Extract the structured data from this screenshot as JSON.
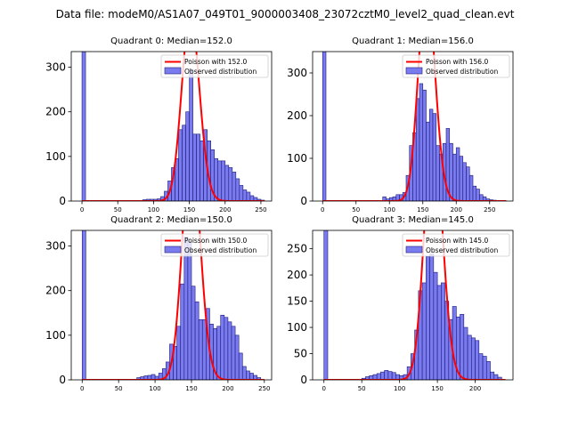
{
  "figure": {
    "suptitle": "Data file: modeM0/AS1A07_049T01_9000003408_23072cztM0_level2_quad_clean.evt"
  },
  "colors": {
    "hist_fill": "#7b7bf0",
    "hist_edge": "#1a1a7a",
    "poisson": "#ff0000"
  },
  "chart_data": [
    {
      "type": "bar",
      "title": "Quadrant 0: Median=152.0",
      "median": 152.0,
      "legend": {
        "poisson": "Poisson with 152.0",
        "observed": "Observed distribution"
      },
      "xlim": [
        -15,
        265
      ],
      "ylim": [
        0,
        335
      ],
      "xticks": [
        0,
        50,
        100,
        150,
        200,
        250
      ],
      "yticks": [
        0,
        100,
        200,
        300
      ],
      "bin_width": 5,
      "bins": [
        [
          0,
          335
        ],
        [
          85,
          3
        ],
        [
          90,
          4
        ],
        [
          95,
          4
        ],
        [
          100,
          4
        ],
        [
          105,
          5
        ],
        [
          110,
          10
        ],
        [
          115,
          22
        ],
        [
          120,
          45
        ],
        [
          125,
          75
        ],
        [
          130,
          95
        ],
        [
          135,
          160
        ],
        [
          140,
          170
        ],
        [
          145,
          200
        ],
        [
          150,
          295
        ],
        [
          155,
          150
        ],
        [
          160,
          150
        ],
        [
          165,
          135
        ],
        [
          170,
          160
        ],
        [
          175,
          135
        ],
        [
          180,
          115
        ],
        [
          185,
          95
        ],
        [
          190,
          90
        ],
        [
          195,
          90
        ],
        [
          200,
          80
        ],
        [
          205,
          75
        ],
        [
          210,
          65
        ],
        [
          215,
          50
        ],
        [
          220,
          35
        ],
        [
          225,
          25
        ],
        [
          230,
          20
        ],
        [
          235,
          12
        ],
        [
          240,
          8
        ],
        [
          245,
          4
        ],
        [
          250,
          2
        ]
      ]
    },
    {
      "type": "bar",
      "title": "Quadrant 1: Median=156.0",
      "median": 156.0,
      "legend": {
        "poisson": "Poisson with 156.0",
        "observed": "Observed distribution"
      },
      "xlim": [
        -15,
        285
      ],
      "ylim": [
        0,
        350
      ],
      "xticks": [
        0,
        50,
        100,
        150,
        200,
        250
      ],
      "yticks": [
        0,
        100,
        200,
        300
      ],
      "bin_width": 5,
      "bins": [
        [
          0,
          350
        ],
        [
          90,
          10
        ],
        [
          95,
          5
        ],
        [
          100,
          8
        ],
        [
          105,
          10
        ],
        [
          110,
          15
        ],
        [
          115,
          15
        ],
        [
          120,
          20
        ],
        [
          125,
          60
        ],
        [
          130,
          130
        ],
        [
          135,
          160
        ],
        [
          140,
          240
        ],
        [
          145,
          275
        ],
        [
          150,
          260
        ],
        [
          155,
          185
        ],
        [
          160,
          215
        ],
        [
          165,
          205
        ],
        [
          170,
          130
        ],
        [
          175,
          110
        ],
        [
          180,
          135
        ],
        [
          185,
          170
        ],
        [
          190,
          135
        ],
        [
          195,
          110
        ],
        [
          200,
          125
        ],
        [
          205,
          105
        ],
        [
          210,
          90
        ],
        [
          215,
          80
        ],
        [
          220,
          60
        ],
        [
          225,
          35
        ],
        [
          230,
          28
        ],
        [
          235,
          15
        ],
        [
          240,
          10
        ],
        [
          245,
          5
        ],
        [
          250,
          3
        ],
        [
          255,
          2
        ]
      ]
    },
    {
      "type": "bar",
      "title": "Quadrant 2: Median=150.0",
      "median": 150.0,
      "legend": {
        "poisson": "Poisson with 150.0",
        "observed": "Observed distribution"
      },
      "xlim": [
        -15,
        260
      ],
      "ylim": [
        0,
        335
      ],
      "xticks": [
        0,
        50,
        100,
        150,
        200,
        250
      ],
      "yticks": [
        0,
        100,
        200,
        300
      ],
      "bin_width": 5,
      "bins": [
        [
          0,
          335
        ],
        [
          75,
          5
        ],
        [
          80,
          7
        ],
        [
          85,
          9
        ],
        [
          90,
          10
        ],
        [
          95,
          12
        ],
        [
          100,
          8
        ],
        [
          105,
          15
        ],
        [
          110,
          25
        ],
        [
          115,
          40
        ],
        [
          120,
          80
        ],
        [
          125,
          75
        ],
        [
          130,
          120
        ],
        [
          135,
          215
        ],
        [
          140,
          320
        ],
        [
          145,
          310
        ],
        [
          150,
          210
        ],
        [
          155,
          175
        ],
        [
          160,
          135
        ],
        [
          165,
          135
        ],
        [
          170,
          160
        ],
        [
          175,
          125
        ],
        [
          180,
          115
        ],
        [
          185,
          120
        ],
        [
          190,
          145
        ],
        [
          195,
          140
        ],
        [
          200,
          130
        ],
        [
          205,
          120
        ],
        [
          210,
          100
        ],
        [
          215,
          60
        ],
        [
          220,
          30
        ],
        [
          225,
          20
        ],
        [
          230,
          15
        ],
        [
          235,
          10
        ],
        [
          240,
          5
        ]
      ]
    },
    {
      "type": "bar",
      "title": "Quadrant 3: Median=145.0",
      "median": 145.0,
      "legend": {
        "poisson": "Poisson with 145.0",
        "observed": "Observed distribution"
      },
      "xlim": [
        -15,
        250
      ],
      "ylim": [
        0,
        285
      ],
      "xticks": [
        0,
        50,
        100,
        150,
        200
      ],
      "yticks": [
        0,
        50,
        100,
        150,
        200,
        250
      ],
      "bin_width": 5,
      "bins": [
        [
          0,
          285
        ],
        [
          50,
          3
        ],
        [
          55,
          6
        ],
        [
          60,
          8
        ],
        [
          65,
          10
        ],
        [
          70,
          12
        ],
        [
          75,
          15
        ],
        [
          80,
          18
        ],
        [
          85,
          16
        ],
        [
          90,
          14
        ],
        [
          95,
          10
        ],
        [
          100,
          8
        ],
        [
          105,
          10
        ],
        [
          110,
          25
        ],
        [
          115,
          50
        ],
        [
          120,
          95
        ],
        [
          125,
          170
        ],
        [
          130,
          185
        ],
        [
          135,
          235
        ],
        [
          140,
          240
        ],
        [
          145,
          205
        ],
        [
          150,
          180
        ],
        [
          155,
          185
        ],
        [
          160,
          150
        ],
        [
          165,
          115
        ],
        [
          170,
          140
        ],
        [
          175,
          120
        ],
        [
          180,
          125
        ],
        [
          185,
          100
        ],
        [
          190,
          85
        ],
        [
          195,
          80
        ],
        [
          200,
          75
        ],
        [
          205,
          50
        ],
        [
          210,
          45
        ],
        [
          215,
          35
        ],
        [
          220,
          15
        ],
        [
          225,
          10
        ],
        [
          230,
          5
        ]
      ]
    }
  ]
}
